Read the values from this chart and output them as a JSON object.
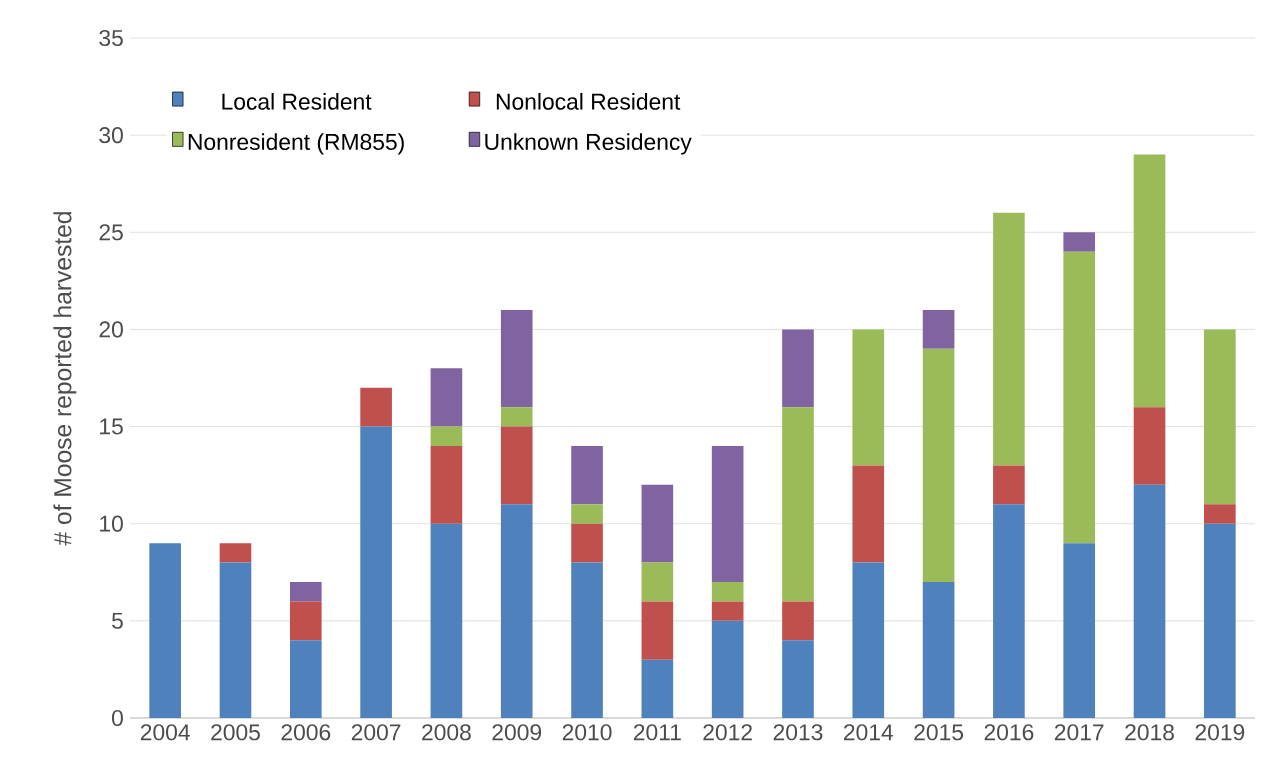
{
  "chart_data": {
    "type": "bar",
    "stacked": true,
    "ylabel": "# of Moose reported harvested",
    "categories": [
      "2004",
      "2005",
      "2006",
      "2007",
      "2008",
      "2009",
      "2010",
      "2011",
      "2012",
      "2013",
      "2014",
      "2015",
      "2016",
      "2017",
      "2018",
      "2019"
    ],
    "series": [
      {
        "name": "Local Resident",
        "color": "#4f81bd",
        "values": [
          9,
          8,
          4,
          15,
          10,
          11,
          8,
          3,
          5,
          4,
          8,
          7,
          11,
          9,
          12,
          10
        ]
      },
      {
        "name": "Nonlocal Resident",
        "color": "#c0504d",
        "values": [
          0,
          1,
          2,
          2,
          4,
          4,
          2,
          3,
          1,
          2,
          5,
          0,
          2,
          0,
          4,
          1
        ]
      },
      {
        "name": "Nonresident (RM855)",
        "color": "#9bbb59",
        "values": [
          0,
          0,
          0,
          0,
          1,
          1,
          1,
          2,
          1,
          10,
          7,
          12,
          13,
          15,
          13,
          9
        ]
      },
      {
        "name": "Unknown Residency",
        "color": "#8064a2",
        "values": [
          0,
          0,
          1,
          0,
          3,
          5,
          3,
          4,
          7,
          4,
          0,
          2,
          0,
          1,
          0,
          0
        ]
      }
    ],
    "ylim": [
      0,
      35
    ],
    "yticks": [
      0,
      5,
      10,
      15,
      20,
      25,
      30,
      35
    ],
    "grid": "y",
    "legend": "top"
  }
}
